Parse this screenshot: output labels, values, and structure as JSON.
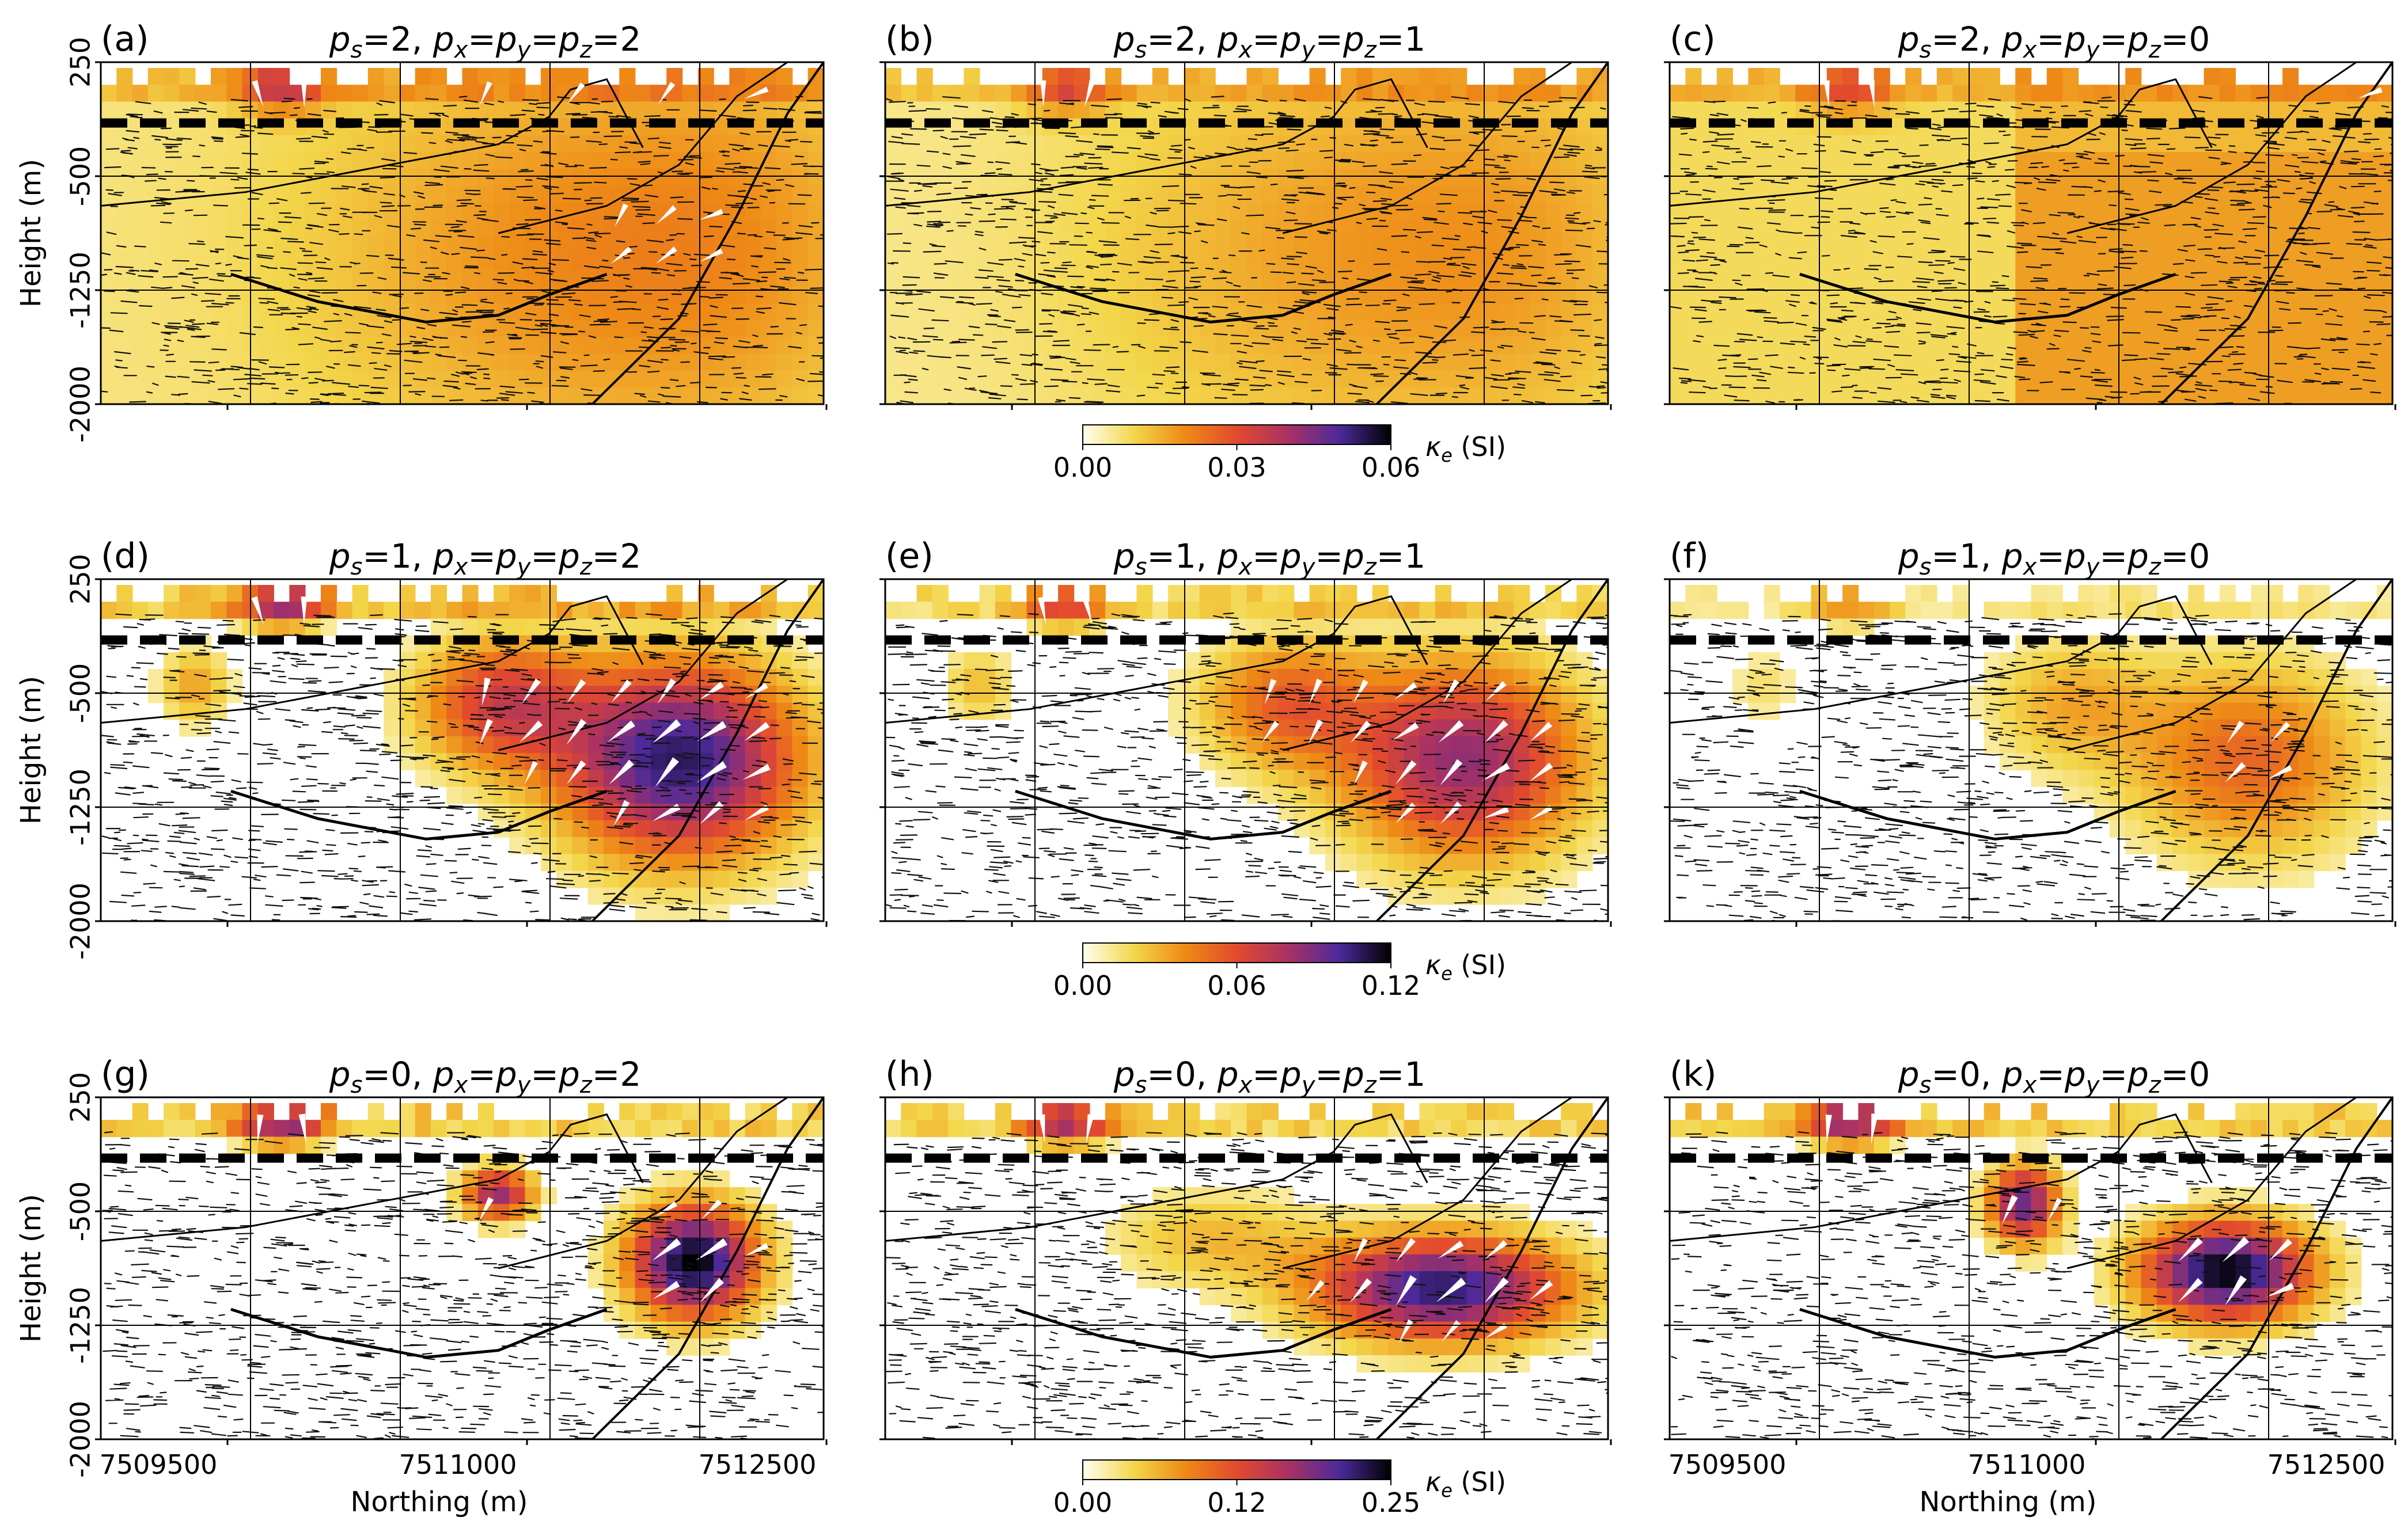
{
  "chart_data": [
    {
      "type": "heatmap",
      "panel_label": "(a)",
      "title_parts": {
        "ps": "2",
        "pxyz": "2"
      },
      "ylabel": "Height (m)",
      "xlabel": "",
      "ylim": [
        -2000,
        250
      ],
      "y_ticks": [
        "250",
        "-500",
        "-1250",
        "-2000"
      ],
      "x_ticks": [],
      "dashed_line_height": -150,
      "anomaly": {
        "shape": "broad",
        "intensity": 0.62
      }
    },
    {
      "type": "heatmap",
      "panel_label": "(b)",
      "title_parts": {
        "ps": "2",
        "pxyz": "1"
      },
      "ylim": [
        -2000,
        250
      ],
      "y_ticks": [],
      "x_ticks": [],
      "dashed_line_height": -150,
      "anomaly": {
        "shape": "broad",
        "intensity": 0.55
      }
    },
    {
      "type": "heatmap",
      "panel_label": "(c)",
      "title_parts": {
        "ps": "2",
        "pxyz": "0"
      },
      "ylim": [
        -2000,
        250
      ],
      "y_ticks": [],
      "x_ticks": [],
      "dashed_line_height": -150,
      "anomaly": {
        "shape": "block",
        "intensity": 0.5
      }
    },
    {
      "type": "heatmap",
      "panel_label": "(d)",
      "title_parts": {
        "ps": "1",
        "pxyz": "2"
      },
      "ylabel": "Height (m)",
      "ylim": [
        -2000,
        250
      ],
      "y_ticks": [
        "250",
        "-500",
        "-1250",
        "-2000"
      ],
      "x_ticks": [],
      "dashed_line_height": -150,
      "anomaly": {
        "shape": "bowl",
        "intensity": 0.95
      }
    },
    {
      "type": "heatmap",
      "panel_label": "(e)",
      "title_parts": {
        "ps": "1",
        "pxyz": "1"
      },
      "ylim": [
        -2000,
        250
      ],
      "y_ticks": [],
      "x_ticks": [],
      "dashed_line_height": -150,
      "anomaly": {
        "shape": "bowl",
        "intensity": 0.75
      }
    },
    {
      "type": "heatmap",
      "panel_label": "(f)",
      "title_parts": {
        "ps": "1",
        "pxyz": "0"
      },
      "ylim": [
        -2000,
        250
      ],
      "y_ticks": [],
      "x_ticks": [],
      "dashed_line_height": -150,
      "anomaly": {
        "shape": "bowl",
        "intensity": 0.45
      }
    },
    {
      "type": "heatmap",
      "panel_label": "(g)",
      "title_parts": {
        "ps": "0",
        "pxyz": "2"
      },
      "ylabel": "Height (m)",
      "xlabel": "Northing (m)",
      "ylim": [
        -2000,
        250
      ],
      "y_ticks": [
        "250",
        "-500",
        "-1250",
        "-2000"
      ],
      "x_ticks": [
        "7509500",
        "7511000",
        "7512500"
      ],
      "dashed_line_height": -150,
      "anomaly": {
        "shape": "compact",
        "intensity": 1.0
      }
    },
    {
      "type": "heatmap",
      "panel_label": "(h)",
      "title_parts": {
        "ps": "0",
        "pxyz": "1"
      },
      "ylim": [
        -2000,
        250
      ],
      "y_ticks": [],
      "x_ticks": [],
      "dashed_line_height": -150,
      "anomaly": {
        "shape": "ellipse",
        "intensity": 0.9
      }
    },
    {
      "type": "heatmap",
      "panel_label": "(k)",
      "title_parts": {
        "ps": "0",
        "pxyz": "0"
      },
      "xlabel": "Northing (m)",
      "ylim": [
        -2000,
        250
      ],
      "y_ticks": [],
      "x_ticks": [
        "7509500",
        "7511000",
        "7512500"
      ],
      "dashed_line_height": -150,
      "anomaly": {
        "shape": "blocks",
        "intensity": 1.0
      }
    }
  ],
  "colorbars": [
    {
      "ticks": [
        "0.00",
        "0.03",
        "0.06"
      ],
      "label": "κe (SI)"
    },
    {
      "ticks": [
        "0.00",
        "0.06",
        "0.12"
      ],
      "label": "κe (SI)"
    },
    {
      "ticks": [
        "0.00",
        "0.12",
        "0.25"
      ],
      "label": "κe (SI)"
    }
  ],
  "colormap": [
    "#fffff0",
    "#f3d64a",
    "#ee8a16",
    "#e24a2e",
    "#a83264",
    "#4c2a9a",
    "#000000"
  ],
  "title_template": {
    "s_var": "p",
    "s_sub": "s",
    "eq": "=",
    "sep": ", ",
    "xyz": "p_x=p_y=p_z"
  }
}
